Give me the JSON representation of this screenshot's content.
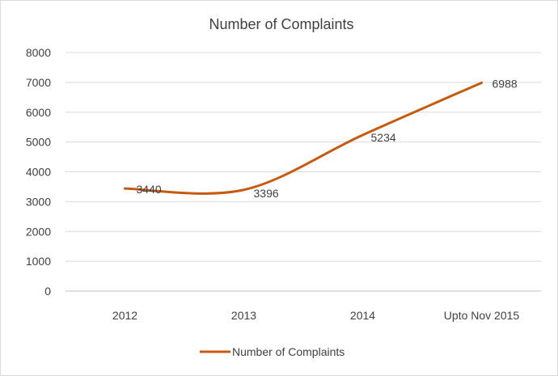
{
  "chart_data": {
    "type": "line",
    "title": "Number of Complaints",
    "categories": [
      "2012",
      "2013",
      "2014",
      "Upto Nov 2015"
    ],
    "series": [
      {
        "name": "Number of Complaints",
        "values": [
          3440,
          3396,
          5234,
          6988
        ],
        "data_labels": [
          "3440",
          "3396",
          "5234",
          "6988"
        ],
        "color": "#c55a11",
        "smooth": true
      }
    ],
    "ylim": [
      0,
      8000
    ],
    "yticks": [
      0,
      1000,
      2000,
      3000,
      4000,
      5000,
      6000,
      7000,
      8000
    ],
    "ytick_labels": [
      "0",
      "1000",
      "2000",
      "3000",
      "4000",
      "5000",
      "6000",
      "7000",
      "8000"
    ],
    "grid": true,
    "legend": "bottom",
    "xlabel": "",
    "ylabel": ""
  }
}
